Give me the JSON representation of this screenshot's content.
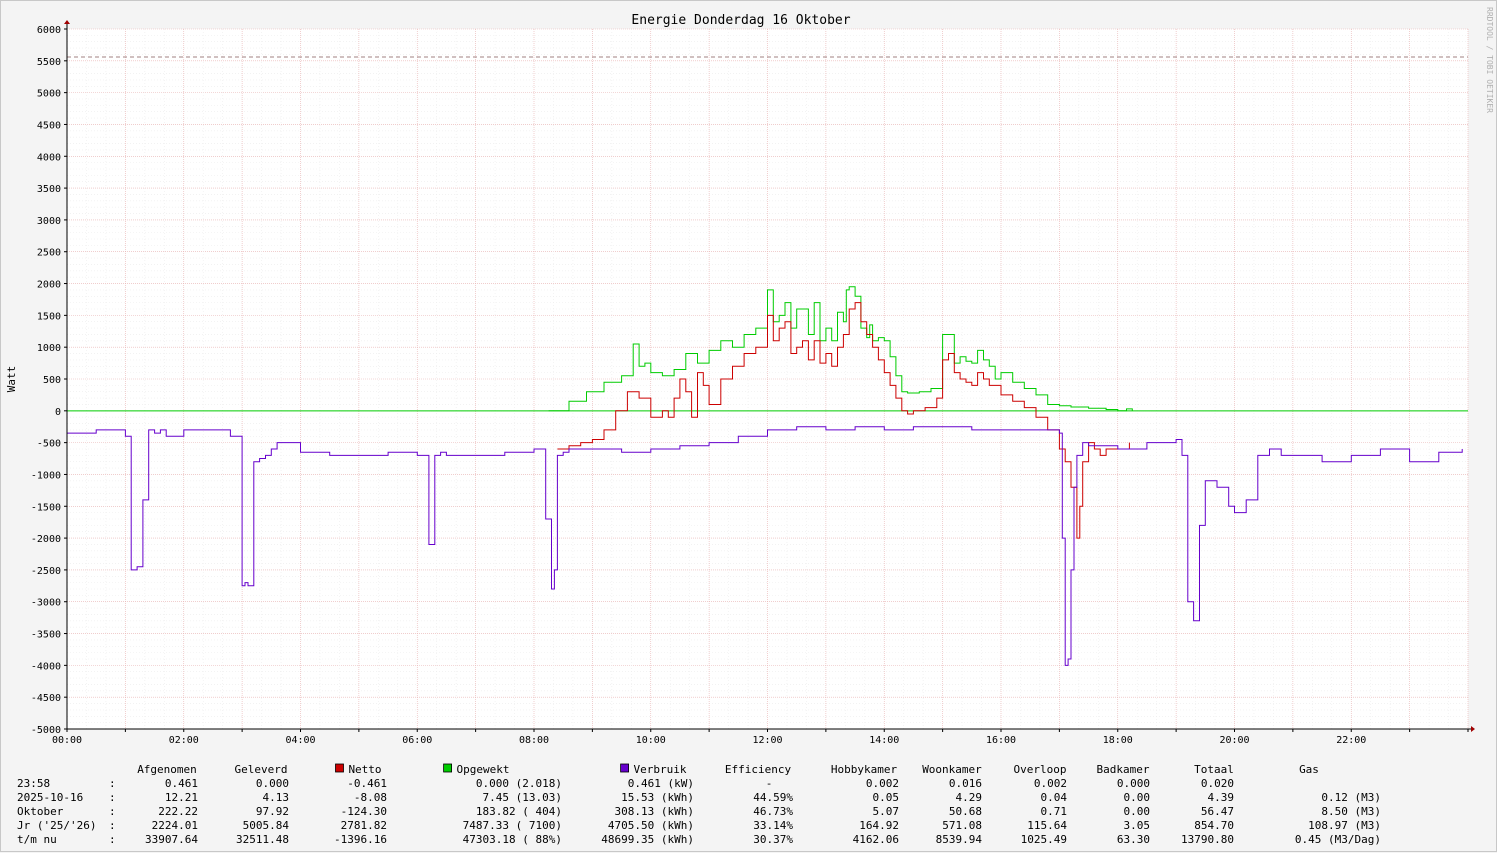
{
  "window": {
    "watermark": "RRDTOOL / TOBI OETIKER"
  },
  "chart_data": {
    "type": "line",
    "title": "Energie Donderdag 16 Oktober",
    "ylabel": "Watt",
    "xlabel": "",
    "ylim": [
      -5000,
      6000
    ],
    "y_ticks": [
      "6000",
      "5500",
      "5000",
      "4500",
      "4000",
      "3500",
      "3000",
      "2500",
      "2000",
      "1500",
      "1000",
      "500",
      "0",
      "-500",
      "-1000",
      "-1500",
      "-2000",
      "-2500",
      "-3000",
      "-3500",
      "-4000",
      "-4500",
      "-5000"
    ],
    "xlim_hours": [
      0,
      24
    ],
    "x_ticks": [
      {
        "h": 0,
        "label": "00:00"
      },
      {
        "h": 2,
        "label": "02:00"
      },
      {
        "h": 4,
        "label": "04:00"
      },
      {
        "h": 6,
        "label": "06:00"
      },
      {
        "h": 8,
        "label": "08:00"
      },
      {
        "h": 10,
        "label": "10:00"
      },
      {
        "h": 12,
        "label": "12:00"
      },
      {
        "h": 14,
        "label": "14:00"
      },
      {
        "h": 16,
        "label": "16:00"
      },
      {
        "h": 18,
        "label": "18:00"
      },
      {
        "h": 20,
        "label": "20:00"
      },
      {
        "h": 22,
        "label": "22:00"
      }
    ],
    "grid": true,
    "hrule": {
      "value": 5560,
      "color": "#a08080"
    },
    "colors": {
      "netto": "#cc0000",
      "opgewekt": "#00cc00",
      "verbruik": "#6600cc",
      "zero": "#00cc00"
    },
    "series": [
      {
        "name": "Opgewekt",
        "color": "#00cc00",
        "x": [
          8.25,
          8.6,
          8.9,
          9.2,
          9.5,
          9.7,
          9.8,
          9.9,
          10.0,
          10.2,
          10.4,
          10.6,
          10.8,
          11.0,
          11.2,
          11.4,
          11.6,
          11.8,
          12.0,
          12.1,
          12.2,
          12.3,
          12.4,
          12.5,
          12.6,
          12.7,
          12.8,
          12.9,
          13.0,
          13.1,
          13.2,
          13.3,
          13.35,
          13.4,
          13.5,
          13.6,
          13.7,
          13.75,
          13.8,
          13.9,
          14.0,
          14.1,
          14.2,
          14.3,
          14.4,
          14.6,
          14.8,
          15.0,
          15.2,
          15.3,
          15.4,
          15.5,
          15.6,
          15.7,
          15.8,
          15.9,
          16.0,
          16.2,
          16.4,
          16.6,
          16.8,
          17.0,
          17.2,
          17.5,
          17.8,
          18.0,
          18.15,
          18.25
        ],
        "y": [
          0,
          150,
          300,
          450,
          550,
          1050,
          700,
          750,
          600,
          550,
          650,
          900,
          750,
          950,
          1100,
          1000,
          1200,
          1300,
          1900,
          1400,
          1500,
          1700,
          1300,
          1600,
          1600,
          1200,
          1700,
          1100,
          1300,
          1100,
          1550,
          1400,
          1900,
          1950,
          1800,
          1300,
          1150,
          1350,
          1100,
          1150,
          1100,
          850,
          550,
          300,
          280,
          300,
          350,
          1200,
          750,
          850,
          780,
          750,
          950,
          800,
          700,
          500,
          600,
          450,
          350,
          250,
          100,
          80,
          60,
          40,
          20,
          0,
          30,
          0
        ]
      },
      {
        "name": "Netto",
        "color": "#cc0000",
        "x": [
          8.4,
          8.6,
          8.8,
          9.0,
          9.2,
          9.4,
          9.6,
          9.8,
          10.0,
          10.2,
          10.3,
          10.4,
          10.5,
          10.6,
          10.7,
          10.8,
          10.9,
          11.0,
          11.2,
          11.4,
          11.6,
          11.8,
          12.0,
          12.1,
          12.2,
          12.3,
          12.4,
          12.5,
          12.6,
          12.7,
          12.8,
          12.9,
          13.0,
          13.1,
          13.2,
          13.3,
          13.4,
          13.5,
          13.6,
          13.7,
          13.8,
          13.9,
          14.0,
          14.1,
          14.2,
          14.3,
          14.4,
          14.5,
          14.7,
          14.9,
          15.0,
          15.1,
          15.2,
          15.3,
          15.4,
          15.5,
          15.6,
          15.7,
          15.8,
          16.0,
          16.2,
          16.4,
          16.6,
          16.8,
          17.0,
          17.1,
          17.2,
          17.3,
          17.35,
          17.4,
          17.5,
          17.6,
          17.7,
          17.8,
          18.0,
          18.2
        ],
        "y": [
          -600,
          -550,
          -500,
          -450,
          -300,
          0,
          300,
          200,
          -100,
          0,
          -100,
          200,
          500,
          300,
          -100,
          600,
          400,
          100,
          500,
          700,
          900,
          1000,
          1500,
          1100,
          1300,
          1400,
          900,
          1000,
          1100,
          800,
          1100,
          750,
          900,
          700,
          1000,
          1200,
          1600,
          1700,
          1400,
          1200,
          1000,
          800,
          600,
          400,
          200,
          0,
          -50,
          0,
          50,
          200,
          800,
          900,
          600,
          500,
          450,
          400,
          600,
          500,
          400,
          250,
          150,
          50,
          -100,
          -300,
          -600,
          -800,
          -1200,
          -2000,
          -1500,
          -800,
          -500,
          -600,
          -700,
          -600,
          -600,
          -500
        ]
      },
      {
        "name": "Verbruik",
        "color": "#6600cc",
        "x": [
          0,
          0.5,
          1.0,
          1.1,
          1.2,
          1.3,
          1.4,
          1.5,
          1.6,
          1.7,
          2.0,
          2.5,
          2.8,
          3.0,
          3.05,
          3.1,
          3.2,
          3.3,
          3.4,
          3.5,
          3.6,
          4.0,
          4.5,
          5.0,
          5.5,
          6.0,
          6.2,
          6.3,
          6.4,
          6.5,
          7.0,
          7.5,
          8.0,
          8.2,
          8.3,
          8.35,
          8.4,
          8.5,
          8.6,
          9.0,
          9.5,
          10.0,
          10.5,
          11.0,
          11.5,
          12.0,
          12.5,
          13.0,
          13.5,
          14.0,
          14.5,
          15.0,
          15.5,
          16.0,
          16.5,
          17.0,
          17.05,
          17.1,
          17.15,
          17.2,
          17.25,
          17.3,
          17.4,
          17.5,
          18.0,
          18.5,
          19.0,
          19.1,
          19.2,
          19.3,
          19.4,
          19.5,
          19.7,
          19.9,
          20.0,
          20.2,
          20.4,
          20.6,
          20.8,
          21.0,
          21.5,
          22.0,
          22.5,
          23.0,
          23.5,
          23.9
        ],
        "y": [
          -350,
          -300,
          -400,
          -2500,
          -2450,
          -1400,
          -300,
          -350,
          -300,
          -400,
          -300,
          -300,
          -400,
          -2750,
          -2700,
          -2750,
          -800,
          -750,
          -700,
          -600,
          -500,
          -650,
          -700,
          -700,
          -650,
          -700,
          -2100,
          -700,
          -650,
          -700,
          -700,
          -650,
          -600,
          -1700,
          -2800,
          -2500,
          -700,
          -650,
          -600,
          -600,
          -650,
          -600,
          -550,
          -500,
          -400,
          -300,
          -250,
          -300,
          -250,
          -300,
          -250,
          -250,
          -300,
          -300,
          -300,
          -350,
          -2000,
          -4000,
          -3900,
          -2500,
          -1200,
          -700,
          -500,
          -550,
          -600,
          -500,
          -450,
          -700,
          -3000,
          -3300,
          -1800,
          -1100,
          -1200,
          -1500,
          -1600,
          -1400,
          -700,
          -600,
          -700,
          -700,
          -800,
          -700,
          -600,
          -800,
          -650,
          -600
        ]
      }
    ]
  },
  "legend_table": {
    "headers": [
      "Afgenomen",
      "Geleverd",
      "Netto",
      "Opgewekt",
      "Verbruik",
      "Efficiency",
      "Hobbykamer",
      "Woonkamer",
      "Overloop",
      "Badkamer",
      "Totaal",
      "Gas"
    ],
    "rows": [
      {
        "label": "23:58",
        "sep": ":",
        "cells": [
          "0.461",
          "0.000",
          "-0.461",
          "0.000 (2.018)",
          "0.461 (kW)",
          "-",
          "0.002",
          "0.016",
          "0.002",
          "0.000",
          "0.020",
          ""
        ]
      },
      {
        "label": "2025-10-16",
        "sep": ":",
        "cells": [
          "12.21",
          "4.13",
          "-8.08",
          "7.45 (13.03)",
          "15.53 (kWh)",
          "44.59%",
          "0.05",
          "4.29",
          "0.04",
          "0.00",
          "4.39",
          "0.12 (M3)"
        ]
      },
      {
        "label": "Oktober",
        "sep": ":",
        "cells": [
          "222.22",
          "97.92",
          "-124.30",
          "183.82 (  404)",
          "308.13 (kWh)",
          "46.73%",
          "5.07",
          "50.68",
          "0.71",
          "0.00",
          "56.47",
          "8.50 (M3)"
        ]
      },
      {
        "label": "Jr ('25/'26)",
        "sep": ":",
        "cells": [
          "2224.01",
          "5005.84",
          "2781.82",
          "7487.33 ( 7100)",
          "4705.50 (kWh)",
          "33.14%",
          "164.92",
          "571.08",
          "115.64",
          "3.05",
          "854.70",
          "108.97 (M3)"
        ]
      },
      {
        "label": "t/m nu",
        "sep": ":",
        "cells": [
          "33907.64",
          "32511.48",
          "-1396.16",
          "47303.18 (  88%)",
          "48699.35 (kWh)",
          "30.37%",
          "4162.06",
          "8539.94",
          "1025.49",
          "63.30",
          "13790.80",
          "0.45 (M3/Dag)"
        ]
      }
    ]
  }
}
